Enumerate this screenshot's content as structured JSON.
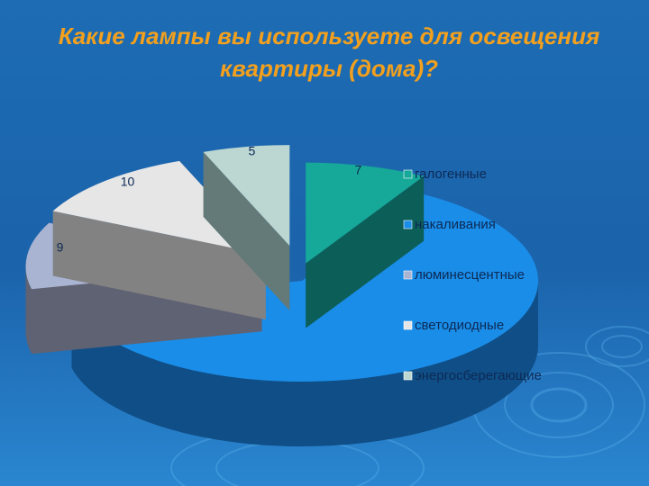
{
  "slide": {
    "title_line1": "Какие лампы вы используете для освещения",
    "title_line2": "квартиры (дома)?"
  },
  "colors": {
    "background": "#1d6cb4",
    "title": "#f2a01d",
    "label": "#0d2a55"
  },
  "chart_data": {
    "type": "pie",
    "style": "3d-exploded",
    "title": "Какие лампы вы используете для освещения квартиры (дома)?",
    "slices": [
      {
        "name": "галогенные",
        "value": 7,
        "label": "7",
        "color": "#16a898",
        "side": "#0c5e58"
      },
      {
        "name": "накаливания",
        "value": 53,
        "label": "",
        "color": "#1a8de8",
        "side": "#0f4e86"
      },
      {
        "name": "люминесцентные",
        "value": 9,
        "label": "9",
        "color": "#a9b4d2",
        "side": "#5f6273"
      },
      {
        "name": "светодиодные",
        "value": 10,
        "label": "10",
        "color": "#e6e6e6",
        "side": "#828282"
      },
      {
        "name": "энергосберегающие",
        "value": 5,
        "label": "5",
        "color": "#bcd6d2",
        "side": "#637a78"
      }
    ],
    "legend": {
      "placement": "right",
      "entries": [
        "галогенные",
        "накаливания",
        "люминесцентные",
        "светодиодные",
        "энергосберегающие"
      ]
    }
  }
}
